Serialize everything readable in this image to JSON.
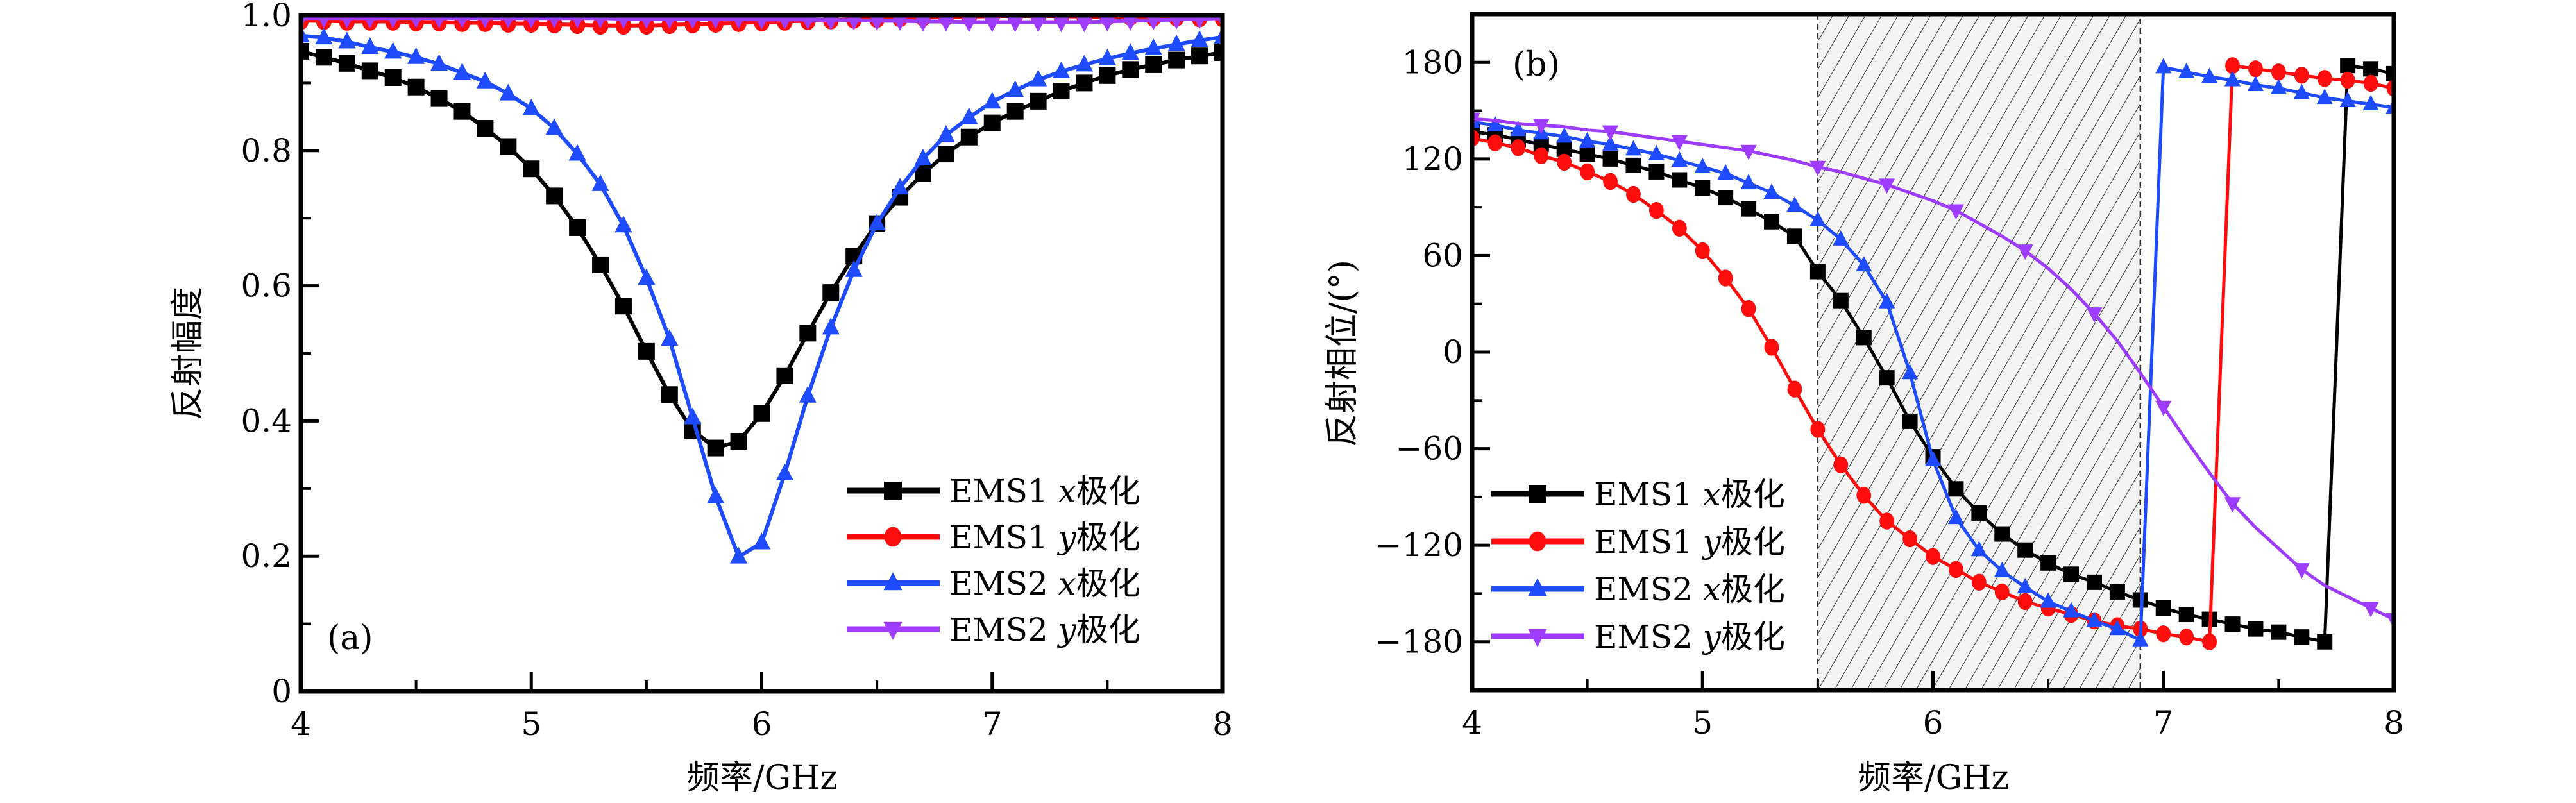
{
  "chart_data": [
    {
      "id": "a",
      "type": "line",
      "panel_label": "(a)",
      "title": "",
      "xlabel": "频率/GHz",
      "ylabel": "反射幅度",
      "xlim": [
        4,
        8
      ],
      "ylim": [
        0,
        1.0
      ],
      "xticks": [
        4,
        5,
        6,
        7,
        8
      ],
      "xtick_labels": [
        "4",
        "5",
        "6",
        "7",
        "8"
      ],
      "xminor": [
        4.5,
        5.5,
        6.5,
        7.5
      ],
      "yticks": [
        0,
        0.2,
        0.4,
        0.6,
        0.8,
        1.0
      ],
      "ytick_labels": [
        "0",
        "0.2",
        "0.4",
        "0.6",
        "0.8",
        "1.0"
      ],
      "yminor": [
        0.1,
        0.3,
        0.5,
        0.7,
        0.9
      ],
      "grid": false,
      "legend_position": "bottom-right",
      "x": [
        4.0,
        4.1,
        4.2,
        4.3,
        4.4,
        4.5,
        4.6,
        4.7,
        4.8,
        4.9,
        5.0,
        5.1,
        5.2,
        5.3,
        5.4,
        5.5,
        5.6,
        5.7,
        5.8,
        5.9,
        6.0,
        6.1,
        6.2,
        6.3,
        6.4,
        6.5,
        6.6,
        6.7,
        6.8,
        6.9,
        7.0,
        7.1,
        7.2,
        7.3,
        7.4,
        7.5,
        7.6,
        7.7,
        7.8,
        7.9,
        8.0
      ],
      "series": [
        {
          "name_main": "EMS1 ",
          "name_var": "x",
          "name_suffix": "极化",
          "color": "#000000",
          "marker": "square",
          "values": [
            0.947,
            0.938,
            0.929,
            0.918,
            0.908,
            0.894,
            0.877,
            0.858,
            0.833,
            0.806,
            0.773,
            0.733,
            0.686,
            0.631,
            0.57,
            0.503,
            0.439,
            0.386,
            0.36,
            0.37,
            0.411,
            0.467,
            0.53,
            0.59,
            0.644,
            0.692,
            0.731,
            0.766,
            0.795,
            0.82,
            0.841,
            0.858,
            0.873,
            0.888,
            0.9,
            0.911,
            0.92,
            0.927,
            0.934,
            0.94,
            0.945
          ]
        },
        {
          "name_main": "EMS1 ",
          "name_var": "y",
          "name_suffix": "极化",
          "color": "#ff0d0d",
          "marker": "circle",
          "values": [
            0.992,
            0.992,
            0.991,
            0.991,
            0.991,
            0.99,
            0.99,
            0.989,
            0.989,
            0.988,
            0.988,
            0.987,
            0.986,
            0.985,
            0.985,
            0.985,
            0.986,
            0.987,
            0.988,
            0.989,
            0.99,
            0.991,
            0.992,
            0.993,
            0.994,
            0.995,
            0.996,
            0.997,
            0.998,
            0.998,
            0.999,
            0.999,
            0.999,
            0.999,
            0.998,
            0.998,
            0.998,
            0.997,
            0.997,
            0.996,
            0.996
          ]
        },
        {
          "name_main": "EMS2 ",
          "name_var": "x",
          "name_suffix": "极化",
          "color": "#1f4bff",
          "marker": "triangle-up",
          "values": [
            0.97,
            0.967,
            0.961,
            0.953,
            0.946,
            0.938,
            0.928,
            0.915,
            0.902,
            0.884,
            0.862,
            0.833,
            0.795,
            0.75,
            0.689,
            0.611,
            0.521,
            0.405,
            0.288,
            0.199,
            0.22,
            0.322,
            0.437,
            0.538,
            0.623,
            0.692,
            0.745,
            0.788,
            0.823,
            0.849,
            0.872,
            0.889,
            0.905,
            0.917,
            0.927,
            0.936,
            0.944,
            0.951,
            0.957,
            0.963,
            0.968
          ]
        },
        {
          "name_main": "EMS2 ",
          "name_var": "y",
          "name_suffix": "极化",
          "color": "#9d3cff",
          "marker": "triangle-down",
          "values": [
            0.996,
            0.996,
            0.996,
            0.996,
            0.996,
            0.996,
            0.996,
            0.996,
            0.996,
            0.996,
            0.996,
            0.996,
            0.996,
            0.996,
            0.995,
            0.995,
            0.995,
            0.995,
            0.995,
            0.995,
            0.994,
            0.994,
            0.994,
            0.993,
            0.993,
            0.992,
            0.992,
            0.991,
            0.991,
            0.99,
            0.99,
            0.99,
            0.99,
            0.99,
            0.99,
            0.991,
            0.992,
            0.993,
            0.994,
            0.995,
            0.996
          ]
        }
      ]
    },
    {
      "id": "b",
      "type": "line",
      "panel_label": "(b)",
      "title": "",
      "xlabel": "频率/GHz",
      "ylabel": "反射相位/(°)",
      "xlim": [
        4,
        8
      ],
      "ylim": [
        -210,
        210
      ],
      "xticks": [
        4,
        5,
        6,
        7,
        8
      ],
      "xtick_labels": [
        "4",
        "5",
        "6",
        "7",
        "8"
      ],
      "xminor": [
        4.5,
        5.5,
        6.5,
        7.5
      ],
      "yticks": [
        -180,
        -120,
        -60,
        0,
        60,
        120,
        180
      ],
      "ytick_labels": [
        "−180",
        "−120",
        "−60",
        "0",
        "60",
        "120",
        "180"
      ],
      "yminor": [
        -150,
        -90,
        -30,
        30,
        90,
        150
      ],
      "grid": false,
      "legend_position": "bottom-left",
      "shaded_band": {
        "x_start": 5.5,
        "x_end": 6.9,
        "pattern": "diagonal-hatch"
      },
      "x": [
        4.0,
        4.1,
        4.2,
        4.3,
        4.4,
        4.5,
        4.6,
        4.7,
        4.8,
        4.9,
        5.0,
        5.1,
        5.2,
        5.3,
        5.4,
        5.5,
        5.6,
        5.7,
        5.8,
        5.9,
        6.0,
        6.1,
        6.2,
        6.3,
        6.4,
        6.5,
        6.6,
        6.7,
        6.8,
        6.9,
        7.0,
        7.1,
        7.2,
        7.3,
        7.4,
        7.5,
        7.6,
        7.7,
        7.8,
        7.9,
        8.0
      ],
      "series": [
        {
          "name_main": "EMS1 ",
          "name_var": "x",
          "name_suffix": "极化",
          "color": "#000000",
          "marker": "square",
          "values": [
            137,
            135,
            132,
            129,
            126,
            123,
            120,
            116,
            112,
            107,
            102,
            96,
            89,
            81,
            72,
            50,
            32,
            9,
            -16,
            -43,
            -65,
            -85,
            -100,
            -113,
            -123,
            -131,
            -138,
            -143,
            -149,
            -154,
            -159,
            -163,
            -166,
            -169,
            -172,
            -174,
            -177,
            -180,
            178,
            176,
            173
          ]
        },
        {
          "name_main": "EMS1 ",
          "name_var": "y",
          "name_suffix": "极化",
          "color": "#ff0d0d",
          "marker": "circle",
          "values": [
            133,
            130,
            127,
            122,
            118,
            112,
            106,
            98,
            88,
            77,
            63,
            46,
            27,
            3,
            -23,
            -48,
            -70,
            -89,
            -105,
            -116,
            -127,
            -135,
            -143,
            -149,
            -155,
            -159,
            -163,
            -167,
            -170,
            -172,
            -175,
            -177,
            -180,
            178,
            176,
            174,
            172,
            170,
            169,
            167,
            164
          ]
        },
        {
          "name_main": "EMS2 ",
          "name_var": "x",
          "name_suffix": "极化",
          "color": "#1f4bff",
          "marker": "triangle-up",
          "values": [
            143,
            141,
            138,
            136,
            134,
            131,
            129,
            126,
            123,
            119,
            115,
            111,
            105,
            99,
            91,
            82,
            70,
            54,
            31,
            -13,
            -67,
            -103,
            -123,
            -136,
            -146,
            -155,
            -161,
            -167,
            -172,
            -179,
            177,
            174,
            171,
            169,
            166,
            164,
            161,
            158,
            156,
            154,
            152
          ]
        },
        {
          "name_main": "EMS2 ",
          "name_var": "y",
          "name_suffix": "极化",
          "color": "#9d3cff",
          "marker": "triangle-down",
          "marker_every": 3,
          "values": [
            145,
            144,
            142,
            141,
            140,
            138,
            137,
            135,
            133,
            131,
            129,
            127,
            125,
            122,
            119,
            115,
            112,
            108,
            104,
            99,
            94,
            88,
            80,
            72,
            63,
            52,
            39,
            24,
            7,
            -13,
            -34,
            -55,
            -75,
            -94,
            -109,
            -122,
            -135,
            -145,
            -152,
            -159,
            -166
          ]
        }
      ]
    }
  ]
}
